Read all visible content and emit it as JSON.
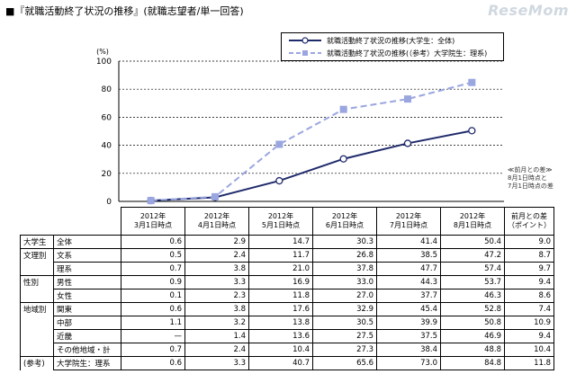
{
  "header": {
    "title": "■『就職活動終了状況の推移』(就職志望者/単一回答)",
    "watermark": "ReseMom"
  },
  "legend": {
    "series1": "就職活動終了状況の推移(大学生：全体)",
    "series2": "就職活動終了状況の推移(（参考）大学院生：理系)"
  },
  "side_note": [
    "≪前月との差≫",
    "8月1日時点と",
    "7月1日時点の差"
  ],
  "chart_data": {
    "type": "line",
    "title": "",
    "unit_label": "(%)",
    "ylim": [
      0,
      100
    ],
    "yticks": [
      0,
      20,
      40,
      60,
      80,
      100
    ],
    "categories": [
      "2012年\n3月1日時点",
      "2012年\n4月1日時点",
      "2012年\n5月1日時点",
      "2012年\n6月1日時点",
      "2012年\n7月1日時点",
      "2012年\n8月1日時点"
    ],
    "series": [
      {
        "name": "就職活動終了状況の推移(大学生：全体)",
        "values": [
          0.6,
          2.9,
          14.7,
          30.3,
          41.4,
          50.4
        ],
        "color": "#1f2a6b",
        "style": "solid"
      },
      {
        "name": "就職活動終了状況の推移(（参考）大学院生：理系)",
        "values": [
          0.6,
          3.3,
          40.7,
          65.6,
          73.0,
          84.8
        ],
        "color": "#9aa6e0",
        "style": "dashed"
      }
    ],
    "grid": "dashed horizontal"
  },
  "table": {
    "columns": [
      "2012年\n3月1日時点",
      "2012年\n4月1日時点",
      "2012年\n5月1日時点",
      "2012年\n6月1日時点",
      "2012年\n7月1日時点",
      "2012年\n8月1日時点",
      "前月との差\n（ポイント）"
    ],
    "rows": [
      {
        "group": "大学生",
        "sub": "全体",
        "values": [
          "0.6",
          "2.9",
          "14.7",
          "30.3",
          "41.4",
          "50.4",
          "9.0"
        ]
      },
      {
        "group": "文理別",
        "sub": "文系",
        "values": [
          "0.5",
          "2.4",
          "11.7",
          "26.8",
          "38.5",
          "47.2",
          "8.7"
        ]
      },
      {
        "group": "",
        "sub": "理系",
        "values": [
          "0.7",
          "3.8",
          "21.0",
          "37.8",
          "47.7",
          "57.4",
          "9.7"
        ]
      },
      {
        "group": "性別",
        "sub": "男性",
        "values": [
          "0.9",
          "3.3",
          "16.9",
          "33.0",
          "44.3",
          "53.7",
          "9.4"
        ]
      },
      {
        "group": "",
        "sub": "女性",
        "values": [
          "0.1",
          "2.3",
          "11.8",
          "27.0",
          "37.7",
          "46.3",
          "8.6"
        ]
      },
      {
        "group": "地域別",
        "sub": "関東",
        "values": [
          "0.6",
          "3.8",
          "17.6",
          "32.9",
          "45.4",
          "52.8",
          "7.4"
        ]
      },
      {
        "group": "",
        "sub": "中部",
        "values": [
          "1.1",
          "3.2",
          "13.8",
          "30.5",
          "39.9",
          "50.8",
          "10.9"
        ]
      },
      {
        "group": "",
        "sub": "近畿",
        "values": [
          "—",
          "1.4",
          "13.6",
          "27.5",
          "37.5",
          "46.9",
          "9.4"
        ]
      },
      {
        "group": "",
        "sub": "その他地域・計",
        "values": [
          "0.7",
          "2.4",
          "10.4",
          "27.3",
          "38.4",
          "48.8",
          "10.4"
        ]
      },
      {
        "group": "(参考)",
        "sub": "大学院生：理系",
        "values": [
          "0.6",
          "3.3",
          "40.7",
          "65.6",
          "73.0",
          "84.8",
          "11.8"
        ]
      }
    ]
  }
}
